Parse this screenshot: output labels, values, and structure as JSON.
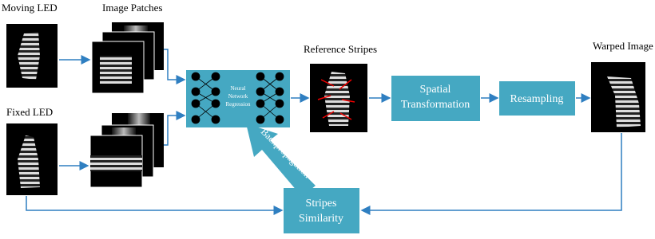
{
  "labels": {
    "moving": "Moving LED",
    "patches": "Image Patches",
    "fixed": "Fixed LED",
    "reference": "Reference Stripes",
    "warped": "Warped Image"
  },
  "nodes": {
    "network": [
      "Neural",
      "Network",
      "Regression"
    ],
    "spatial": [
      "Spatial",
      "Transformation"
    ],
    "resampling": [
      "Resampling"
    ],
    "similarity": [
      "Stripes",
      "Similarity"
    ]
  },
  "backprop": "Backpropagation"
}
